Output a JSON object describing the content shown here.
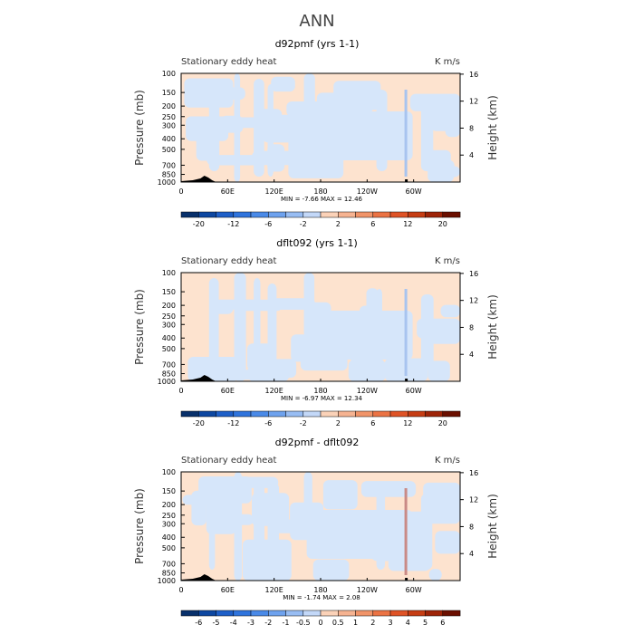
{
  "figure_title": "ANN",
  "colors": {
    "positive_fill": "#fde3cf",
    "negative_fill": "#d6e6fa",
    "topography": "#000000",
    "axis": "#000000"
  },
  "chart_data": [
    {
      "type": "heatmap",
      "title": "d92pmf (yrs 1-1)",
      "left_label": "Stationary eddy heat",
      "right_label": "K m/s",
      "ylabel": "Pressure (mb)",
      "y2label": "Height (km)",
      "x_ticks": [
        "0",
        "60E",
        "120E",
        "180",
        "120W",
        "60W"
      ],
      "x_tick_values": [
        0,
        60,
        120,
        180,
        240,
        300
      ],
      "xlim": [
        0,
        360
      ],
      "y_ticks": [
        "100",
        "150",
        "200",
        "250",
        "300",
        "400",
        "500",
        "700",
        "850",
        "1000"
      ],
      "y_tick_values": [
        100,
        150,
        200,
        250,
        300,
        400,
        500,
        700,
        850,
        1000
      ],
      "ylim": [
        100,
        1000
      ],
      "y2_ticks": [
        "4",
        "8",
        "12",
        "16"
      ],
      "y2_tick_values": [
        4,
        8,
        12,
        16
      ],
      "min_text": "MIN =   -7.66",
      "max_text": "MAX =   12.46",
      "min": -7.66,
      "max": 12.46,
      "colorbar_ticks": [
        "-20",
        "-12",
        "-6",
        "-2",
        "2",
        "6",
        "12",
        "20"
      ],
      "colorbar_levels": [
        -20,
        -16,
        -12,
        -8,
        -6,
        -4,
        -2,
        -1,
        1,
        2,
        4,
        6,
        8,
        12,
        16,
        20
      ]
    },
    {
      "type": "heatmap",
      "title": "dflt092 (yrs 1-1)",
      "left_label": "Stationary eddy heat",
      "right_label": "K m/s",
      "ylabel": "Pressure (mb)",
      "y2label": "Height (km)",
      "x_ticks": [
        "0",
        "60E",
        "120E",
        "180",
        "120W",
        "60W"
      ],
      "x_tick_values": [
        0,
        60,
        120,
        180,
        240,
        300
      ],
      "xlim": [
        0,
        360
      ],
      "y_ticks": [
        "100",
        "150",
        "200",
        "250",
        "300",
        "400",
        "500",
        "700",
        "850",
        "1000"
      ],
      "y_tick_values": [
        100,
        150,
        200,
        250,
        300,
        400,
        500,
        700,
        850,
        1000
      ],
      "ylim": [
        100,
        1000
      ],
      "y2_ticks": [
        "4",
        "8",
        "12",
        "16"
      ],
      "y2_tick_values": [
        4,
        8,
        12,
        16
      ],
      "min_text": "MIN =   -6.97",
      "max_text": "MAX =   12.34",
      "min": -6.97,
      "max": 12.34,
      "colorbar_ticks": [
        "-20",
        "-12",
        "-6",
        "-2",
        "2",
        "6",
        "12",
        "20"
      ],
      "colorbar_levels": [
        -20,
        -16,
        -12,
        -8,
        -6,
        -4,
        -2,
        -1,
        1,
        2,
        4,
        6,
        8,
        12,
        16,
        20
      ]
    },
    {
      "type": "heatmap",
      "title": "d92pmf - dflt092",
      "left_label": "Stationary eddy heat",
      "right_label": "K m/s",
      "ylabel": "Pressure (mb)",
      "y2label": "Height (km)",
      "x_ticks": [
        "0",
        "60E",
        "120E",
        "180",
        "120W",
        "60W"
      ],
      "x_tick_values": [
        0,
        60,
        120,
        180,
        240,
        300
      ],
      "xlim": [
        0,
        360
      ],
      "y_ticks": [
        "100",
        "150",
        "200",
        "250",
        "300",
        "400",
        "500",
        "700",
        "850",
        "1000"
      ],
      "y_tick_values": [
        100,
        150,
        200,
        250,
        300,
        400,
        500,
        700,
        850,
        1000
      ],
      "ylim": [
        100,
        1000
      ],
      "y2_ticks": [
        "4",
        "8",
        "12",
        "16"
      ],
      "y2_tick_values": [
        4,
        8,
        12,
        16
      ],
      "min_text": "MIN =   -1.74",
      "max_text": "MAX =   2.08",
      "min": -1.74,
      "max": 2.08,
      "colorbar_ticks": [
        "-6",
        "-5",
        "-4",
        "-3",
        "-2",
        "-1",
        "-0.5",
        "0",
        "0.5",
        "1",
        "2",
        "3",
        "4",
        "5",
        "6"
      ],
      "colorbar_levels": [
        -6,
        -5,
        -4,
        -3,
        -2,
        -1,
        -0.5,
        0,
        0.5,
        1,
        2,
        3,
        4,
        5,
        6
      ]
    }
  ]
}
